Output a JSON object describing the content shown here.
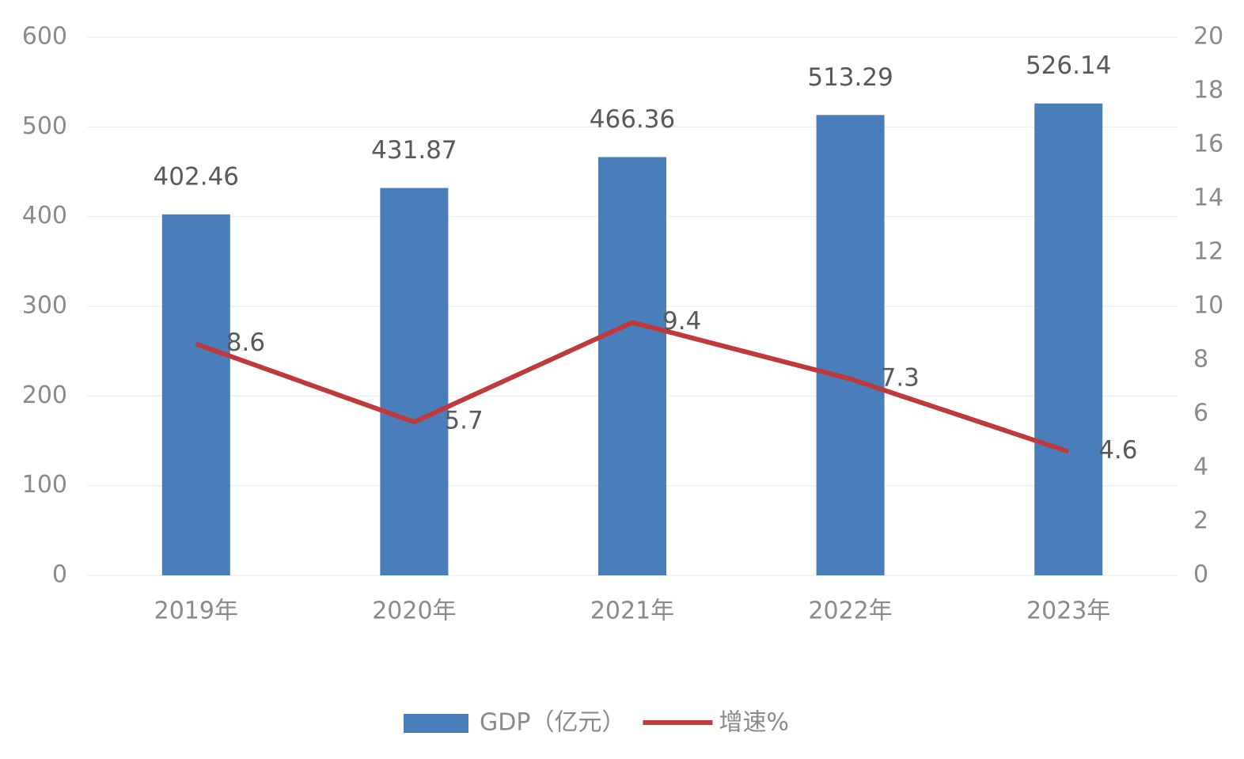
{
  "chart_data": {
    "type": "bar+line",
    "categories": [
      "2019年",
      "2020年",
      "2021年",
      "2022年",
      "2023年"
    ],
    "series": [
      {
        "name": "GDP（亿元）",
        "type": "bar",
        "color": "#4a7ebb",
        "values": [
          402.46,
          431.87,
          466.36,
          513.29,
          526.14
        ]
      },
      {
        "name": "增速%",
        "type": "line",
        "color": "#c0393b",
        "axis": "y2",
        "values": [
          8.6,
          5.7,
          9.4,
          7.3,
          4.6
        ]
      }
    ],
    "ylim": [
      0,
      600
    ],
    "yticks": [
      0,
      100,
      200,
      300,
      400,
      500,
      600
    ],
    "y2lim": [
      0,
      20
    ],
    "y2ticks": [
      0,
      2,
      4,
      6,
      8,
      10,
      12,
      14,
      16,
      18,
      20
    ],
    "grid": true,
    "legend": "bottom"
  }
}
